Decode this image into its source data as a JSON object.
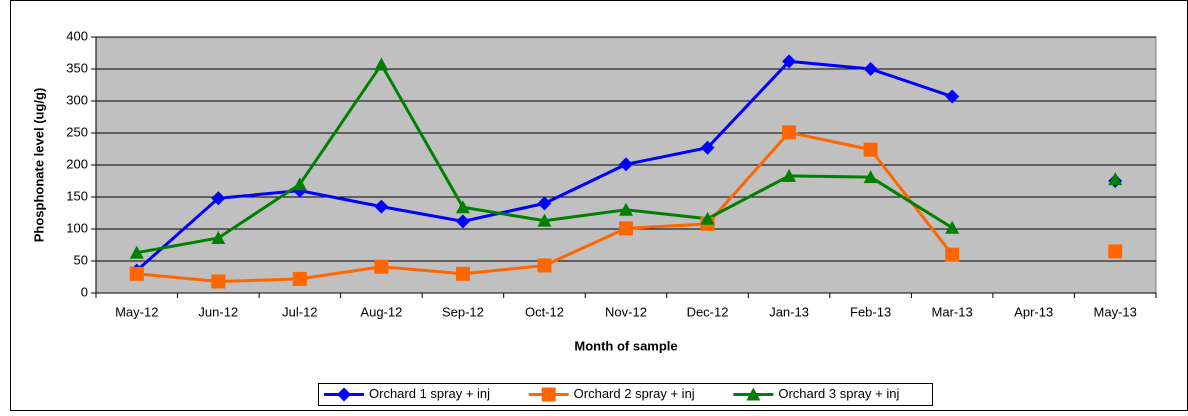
{
  "chart_data": {
    "type": "line",
    "x_label": "Month of sample",
    "y_label": "Phosphonate level (ug/g)",
    "categories": [
      "May-12",
      "Jun-12",
      "Jul-12",
      "Aug-12",
      "Sep-12",
      "Oct-12",
      "Nov-12",
      "Dec-12",
      "Jan-13",
      "Feb-13",
      "Mar-13",
      "Apr-13",
      "May-13"
    ],
    "series": [
      {
        "name": "Orchard 1 spray + inj",
        "color": "#0000ff",
        "marker": "diamond",
        "values": [
          35,
          148,
          160,
          135,
          112,
          140,
          201,
          227,
          362,
          350,
          307,
          null,
          175
        ]
      },
      {
        "name": "Orchard 2 spray + inj",
        "color": "#ff6600",
        "marker": "square",
        "values": [
          30,
          18,
          22,
          41,
          30,
          43,
          101,
          108,
          251,
          224,
          60,
          null,
          65
        ]
      },
      {
        "name": "Orchard 3 spray + inj",
        "color": "#008000",
        "marker": "triangle",
        "values": [
          63,
          86,
          170,
          357,
          134,
          113,
          130,
          116,
          183,
          181,
          102,
          null,
          178
        ]
      }
    ],
    "ylim": [
      0,
      400
    ],
    "yticks": [
      0,
      50,
      100,
      150,
      200,
      250,
      300,
      350,
      400
    ],
    "grid": true,
    "plot_background": "#c0c0c0",
    "legend": "bottom"
  }
}
